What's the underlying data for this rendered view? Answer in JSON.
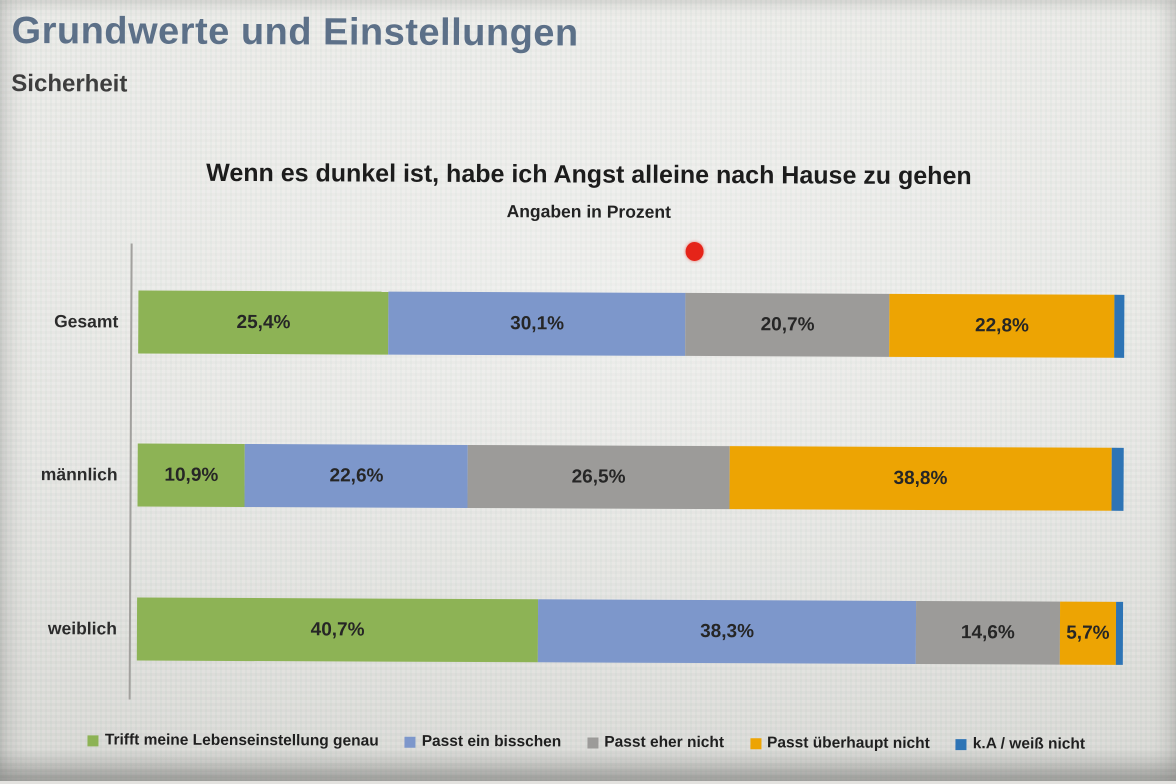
{
  "slide": {
    "title": "Grundwerte und Einstellungen",
    "subtitle": "Sicherheit"
  },
  "chart": {
    "title": "Wenn es dunkel ist, habe ich Angst alleine nach Hause zu gehen",
    "subtitle": "Angaben in Prozent"
  },
  "chart_data": {
    "type": "bar",
    "orientation": "horizontal",
    "stacked": true,
    "categories": [
      "Gesamt",
      "männlich",
      "weiblich"
    ],
    "series": [
      {
        "name": "Trifft meine Lebenseinstellung genau",
        "color": "#8db355",
        "values": [
          25.4,
          10.9,
          40.7
        ],
        "labels": [
          "25,4%",
          "10,9%",
          "40,7%"
        ]
      },
      {
        "name": "Passt ein bisschen",
        "color": "#7d97cb",
        "values": [
          30.1,
          22.6,
          38.3
        ],
        "labels": [
          "30,1%",
          "22,6%",
          "38,3%"
        ]
      },
      {
        "name": "Passt eher nicht",
        "color": "#9c9b99",
        "values": [
          20.7,
          26.5,
          14.6
        ],
        "labels": [
          "20,7%",
          "26,5%",
          "14,6%"
        ]
      },
      {
        "name": "Passt überhaupt nicht",
        "color": "#eda403",
        "values": [
          22.8,
          38.8,
          5.7
        ],
        "labels": [
          "22,8%",
          "38,8%",
          "5,7%"
        ]
      },
      {
        "name": "k.A / weiß nicht",
        "color": "#2e74b5",
        "values": [
          1.0,
          1.2,
          0.7
        ],
        "labels": [
          "",
          "",
          ""
        ]
      }
    ],
    "xlim": [
      0,
      100
    ],
    "value_format": "percent-comma-decimal",
    "grid": false,
    "legend_position": "bottom"
  },
  "annotations": {
    "red_dot_color": "#e52419"
  },
  "colors": {
    "title": "#5c7088",
    "subtitle": "#3e3e3e",
    "axis_line": "#a2a19e",
    "background": "#e3e2df"
  }
}
